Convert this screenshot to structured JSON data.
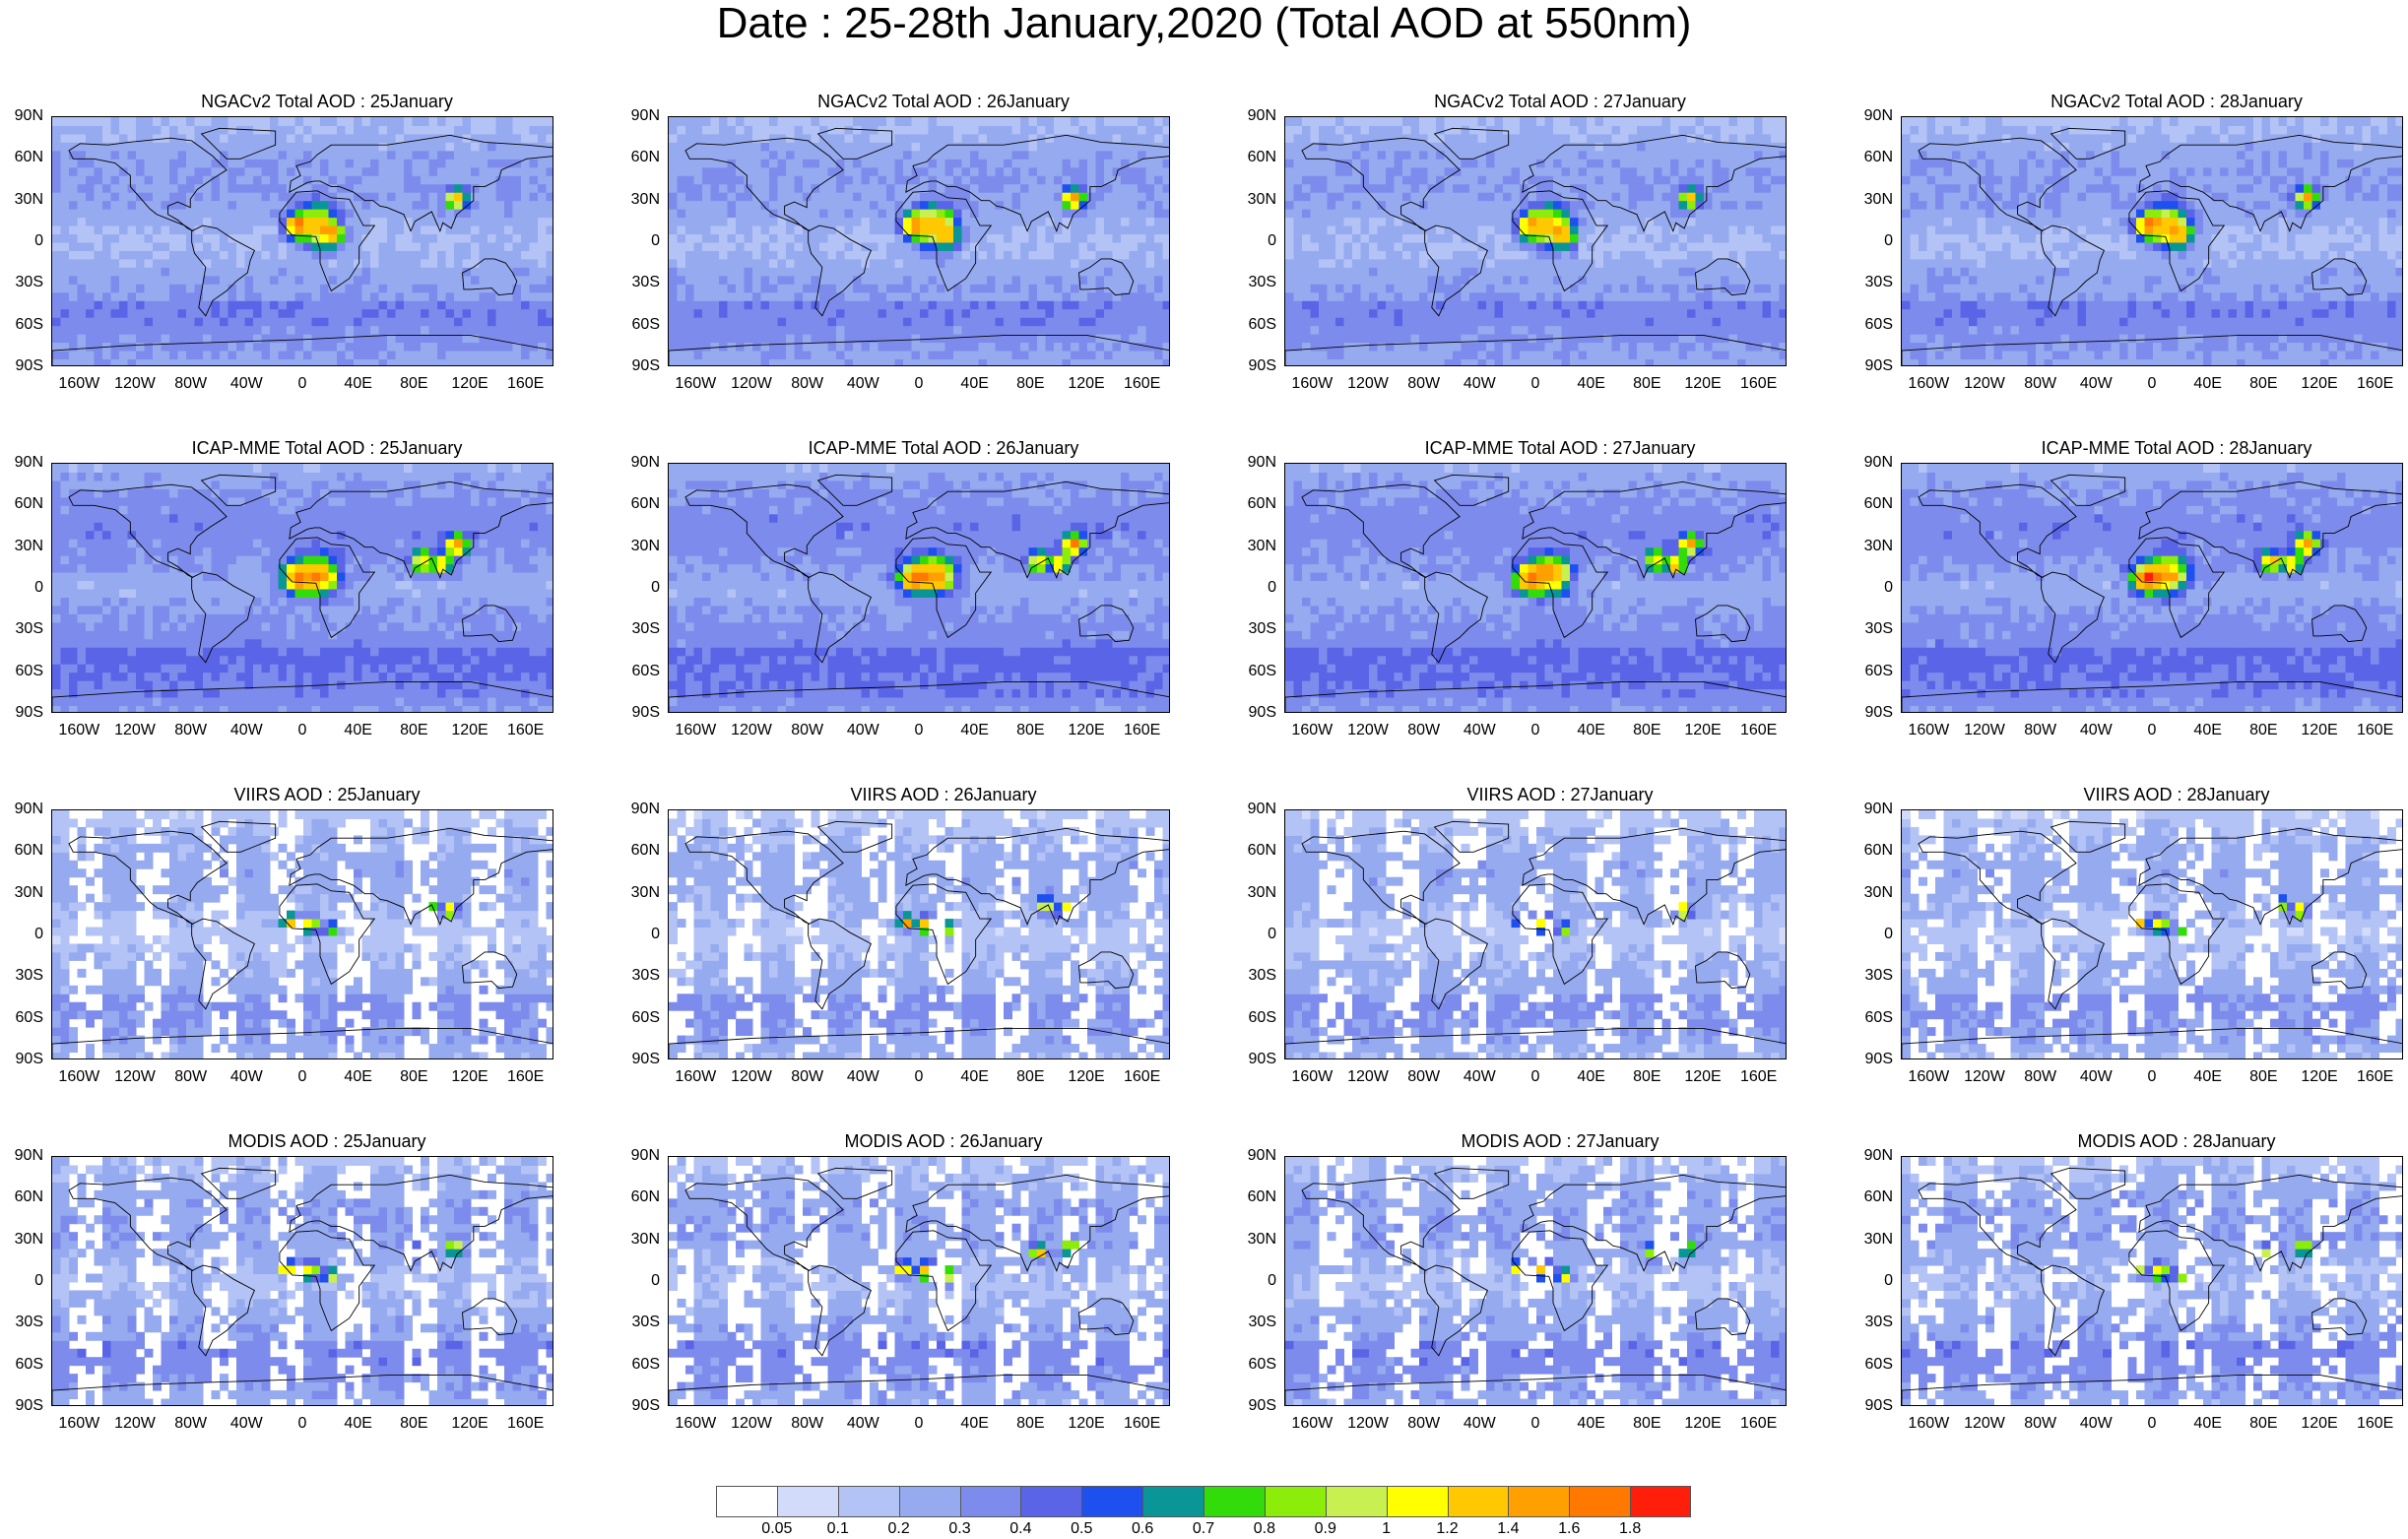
{
  "title": "Date : 25-28th January,2020 (Total AOD at 550nm)",
  "lat_labels": [
    "90N",
    "60N",
    "30N",
    "0",
    "30S",
    "60S",
    "90S"
  ],
  "lon_labels": [
    "160W",
    "120W",
    "80W",
    "40W",
    "0",
    "40E",
    "80E",
    "120E",
    "160E"
  ],
  "rows": [
    {
      "id": "ngac",
      "panels": [
        "NGACv2 Total AOD : 25January",
        "NGACv2 Total AOD : 26January",
        "NGACv2 Total AOD : 27January",
        "NGACv2 Total AOD : 28January"
      ]
    },
    {
      "id": "icap",
      "panels": [
        "ICAP-MME Total AOD : 25January",
        "ICAP-MME Total AOD : 26January",
        "ICAP-MME Total AOD : 27January",
        "ICAP-MME Total AOD : 28January"
      ]
    },
    {
      "id": "viirs",
      "panels": [
        "VIIRS AOD : 25January",
        "VIIRS AOD : 26January",
        "VIIRS AOD : 27January",
        "VIIRS AOD : 28January"
      ]
    },
    {
      "id": "modis",
      "panels": [
        "MODIS AOD : 25January",
        "MODIS AOD : 26January",
        "MODIS AOD : 27January",
        "MODIS AOD : 28January"
      ]
    }
  ],
  "colorbar": {
    "ticks": [
      "0.05",
      "0.1",
      "0.2",
      "0.3",
      "0.4",
      "0.5",
      "0.6",
      "0.7",
      "0.8",
      "0.9",
      "1",
      "1.2",
      "1.4",
      "1.6",
      "1.8"
    ],
    "colors": [
      "#ffffff",
      "#d2dcfa",
      "#b4c3f5",
      "#96aaf0",
      "#7d8cec",
      "#5a64e6",
      "#1e50f0",
      "#0a9696",
      "#32dc0a",
      "#8cec0a",
      "#c8f050",
      "#ffff00",
      "#ffc800",
      "#ffa000",
      "#ff7800",
      "#ff1e0a"
    ]
  }
}
